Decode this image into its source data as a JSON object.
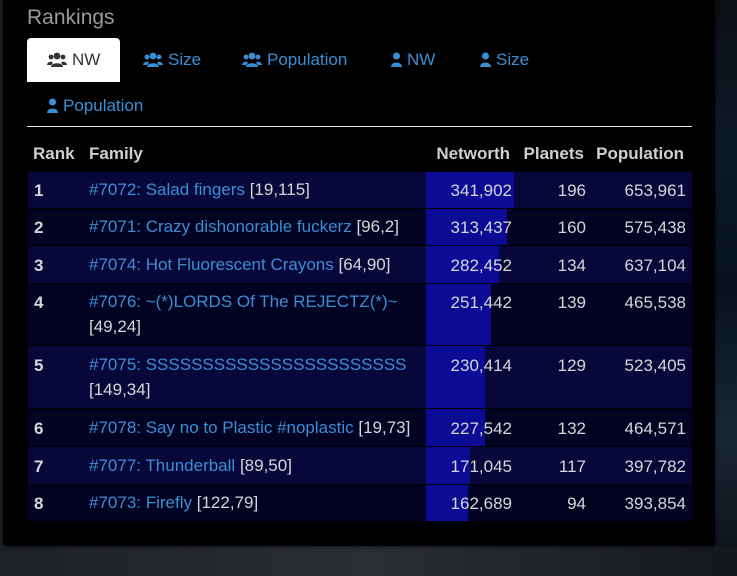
{
  "panel": {
    "title": "Rankings"
  },
  "tabs": [
    {
      "label": "NW",
      "icon": "users-icon",
      "active": true
    },
    {
      "label": "Size",
      "icon": "users-icon",
      "active": false
    },
    {
      "label": "Population",
      "icon": "users-icon",
      "active": false
    },
    {
      "label": "NW",
      "icon": "user-icon",
      "active": false
    },
    {
      "label": "Size",
      "icon": "user-icon",
      "active": false
    },
    {
      "label": "Population",
      "icon": "user-icon",
      "active": false
    }
  ],
  "table": {
    "headers": {
      "rank": "Rank",
      "family": "Family",
      "networth": "Networth",
      "planets": "Planets",
      "population": "Population"
    },
    "rows": [
      {
        "rank": "1",
        "family_link": "#7072: Salad fingers",
        "coords": "[19,115]",
        "networth": "341,902",
        "planets": "196",
        "population": "653,961",
        "nw_fraction": 1.0
      },
      {
        "rank": "2",
        "family_link": "#7071: Crazy dishonorable fuckerz",
        "coords": "[96,2]",
        "networth": "313,437",
        "planets": "160",
        "population": "575,438",
        "nw_fraction": 0.9167
      },
      {
        "rank": "3",
        "family_link": "#7074: Hot Fluorescent Crayons",
        "coords": "[64,90]",
        "networth": "282,452",
        "planets": "134",
        "population": "637,104",
        "nw_fraction": 0.8261
      },
      {
        "rank": "4",
        "family_link": "#7076: ~(*)LORDS Of The REJECTZ(*)~",
        "coords": "[49,24]",
        "networth": "251,442",
        "planets": "139",
        "population": "465,538",
        "nw_fraction": 0.7354
      },
      {
        "rank": "5",
        "family_link": "#7075: SSSSSSSSSSSSSSSSSSSSSSS",
        "coords": "[149,34]",
        "networth": "230,414",
        "planets": "129",
        "population": "523,405",
        "nw_fraction": 0.6739
      },
      {
        "rank": "6",
        "family_link": "#7078: Say no to Plastic #noplastic",
        "coords": "[19,73]",
        "networth": "227,542",
        "planets": "132",
        "population": "464,571",
        "nw_fraction": 0.6655
      },
      {
        "rank": "7",
        "family_link": "#7077: Thunderball",
        "coords": "[89,50]",
        "networth": "171,045",
        "planets": "117",
        "population": "397,782",
        "nw_fraction": 0.5003
      },
      {
        "rank": "8",
        "family_link": "#7073: Firefly",
        "coords": "[122,79]",
        "networth": "162,689",
        "planets": "94",
        "population": "393,854",
        "nw_fraction": 0.4758
      }
    ]
  },
  "colors": {
    "link": "#3a8fd4",
    "bar": "#0b0b96",
    "row_odd": "#07073a",
    "row_even": "#020222"
  }
}
